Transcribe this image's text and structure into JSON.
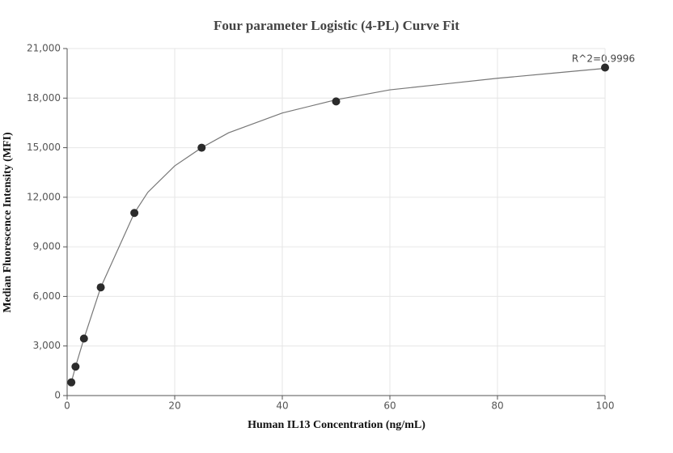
{
  "chart_data": {
    "type": "scatter",
    "title": "Four parameter Logistic (4-PL) Curve Fit",
    "x_label": "Human IL13 Concentration (ng/mL)",
    "y_label": "Median Fluorescence Intensity (MFI)",
    "annotation": "R^2=0.9996",
    "xlim": [
      0,
      100
    ],
    "xticks": [
      0,
      20,
      40,
      60,
      80,
      100
    ],
    "ylim": [
      0,
      21000
    ],
    "yticks": [
      0,
      {
        "value": 3000,
        "label": "3,000"
      },
      {
        "value": 6000,
        "label": "6,000"
      },
      {
        "value": 9000,
        "label": "9,000"
      },
      {
        "value": 12000,
        "label": "12,000"
      },
      {
        "value": 15000,
        "label": "15,000"
      },
      {
        "value": 18000,
        "label": "18,000"
      },
      {
        "value": 21000,
        "label": "21,000"
      }
    ],
    "grid": true,
    "series": [
      {
        "type": "line",
        "color": "#777777",
        "x": [
          0.78,
          1.56,
          3.125,
          6.25,
          12.5,
          15,
          20,
          25,
          30,
          40,
          50,
          60,
          70,
          80,
          90,
          100
        ],
        "values": [
          800,
          1750,
          3450,
          6550,
          11050,
          12300,
          13900,
          15000,
          15900,
          17100,
          17900,
          18500,
          18850,
          19200,
          19500,
          19800
        ]
      },
      {
        "type": "scatter",
        "color": "#2b2b2b",
        "x": [
          0.78,
          1.56,
          3.125,
          6.25,
          12.5,
          25,
          50,
          100
        ],
        "values": [
          800,
          1750,
          3450,
          6550,
          11050,
          15000,
          17800,
          19850
        ]
      }
    ]
  }
}
